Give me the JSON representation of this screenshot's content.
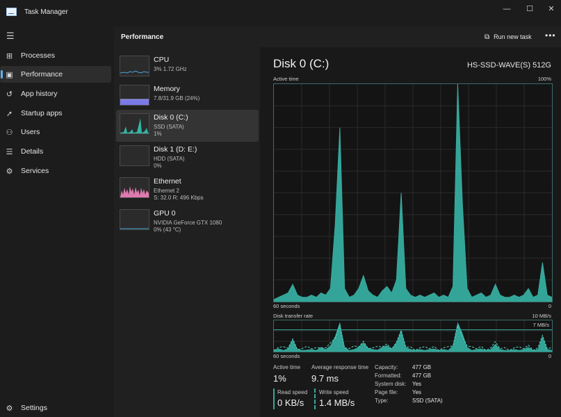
{
  "window": {
    "title": "Task Manager",
    "controls": {
      "minimize": "—",
      "maximize": "☐",
      "close": "✕"
    }
  },
  "nav": {
    "items": [
      {
        "label": "Processes",
        "icon": "processes-icon",
        "glyph": "⊞"
      },
      {
        "label": "Performance",
        "icon": "performance-icon",
        "glyph": "▣",
        "active": true
      },
      {
        "label": "App history",
        "icon": "app-history-icon",
        "glyph": "↺"
      },
      {
        "label": "Startup apps",
        "icon": "startup-icon",
        "glyph": "➚"
      },
      {
        "label": "Users",
        "icon": "users-icon",
        "glyph": "⚇"
      },
      {
        "label": "Details",
        "icon": "details-icon",
        "glyph": "☰"
      },
      {
        "label": "Services",
        "icon": "services-icon",
        "glyph": "⚙"
      }
    ],
    "settings_label": "Settings",
    "settings_glyph": "⚙"
  },
  "header": {
    "title": "Performance",
    "run_label": "Run new task",
    "run_glyph": "⧉",
    "more_glyph": "•••"
  },
  "devices": [
    {
      "name": "CPU",
      "line2": "3%  1.72 GHz",
      "line3": ""
    },
    {
      "name": "Memory",
      "line2": "7.8/31.9 GB (24%)",
      "line3": ""
    },
    {
      "name": "Disk 0 (C:)",
      "line2": "SSD (SATA)",
      "line3": "1%"
    },
    {
      "name": "Disk 1 (D: E:)",
      "line2": "HDD (SATA)",
      "line3": "0%"
    },
    {
      "name": "Ethernet",
      "line2": "Ethernet 2",
      "line3": "S: 32.0  R: 496 Kbps"
    },
    {
      "name": "GPU 0",
      "line2": "NVIDIA GeForce GTX 1080",
      "line3": "0%  (43 °C)"
    }
  ],
  "detail": {
    "title": "Disk 0 (C:)",
    "model": "HS-SSD-WAVE(S) 512G",
    "active_graph": {
      "label": "Active time",
      "max_label": "100%",
      "time_label": "60 seconds",
      "min_label": "0"
    },
    "transfer_graph": {
      "label": "Disk transfer rate",
      "max_label": "10 MB/s",
      "mid_label": "7 MB/s",
      "time_label": "60 seconds",
      "min_label": "0"
    }
  },
  "stats": {
    "active_time": {
      "label": "Active time",
      "value": "1%"
    },
    "avg_response": {
      "label": "Average response time",
      "value": "9.7 ms"
    },
    "read_speed": {
      "label": "Read speed",
      "value": "0 KB/s"
    },
    "write_speed": {
      "label": "Write speed",
      "value": "1.4 MB/s"
    },
    "properties": [
      {
        "key": "Capacity:",
        "value": "477 GB"
      },
      {
        "key": "Formatted:",
        "value": "477 GB"
      },
      {
        "key": "System disk:",
        "value": "Yes"
      },
      {
        "key": "Page file:",
        "value": "Yes"
      },
      {
        "key": "Type:",
        "value": "SSD (SATA)"
      }
    ]
  },
  "colors": {
    "accent": "#5fb2f2",
    "disk_fill": "#35b5a6",
    "disk_line": "#3aa89c",
    "memory_fill": "#7a7ae6",
    "ethernet_fill": "#e07ab0",
    "cpu_line": "#4aa6d8"
  },
  "chart_data": {
    "type": "area",
    "title": "Active time",
    "xlabel": "60 seconds",
    "ylabel": "",
    "ylim": [
      0,
      100
    ],
    "values": [
      1,
      2,
      3,
      4,
      8,
      3,
      2,
      2,
      3,
      2,
      4,
      3,
      6,
      35,
      80,
      6,
      2,
      3,
      6,
      12,
      5,
      3,
      2,
      5,
      7,
      4,
      10,
      50,
      6,
      3,
      2,
      3,
      2,
      3,
      4,
      2,
      3,
      2,
      7,
      100,
      45,
      6,
      2,
      3,
      4,
      2,
      3,
      8,
      3,
      2,
      2,
      3,
      2,
      3,
      6,
      2,
      3,
      18,
      3,
      2
    ],
    "transfer": {
      "ylim": [
        0,
        10
      ],
      "values": [
        0.5,
        1,
        0.5,
        1,
        4,
        0.8,
        0.5,
        0.6,
        0.8,
        0.5,
        1.5,
        0.8,
        2,
        5,
        9.5,
        1.5,
        0.5,
        0.8,
        1.5,
        3,
        1.2,
        0.8,
        0.6,
        1.5,
        2,
        1,
        3,
        7,
        1.5,
        0.8,
        0.5,
        0.8,
        0.5,
        0.8,
        1,
        0.5,
        0.8,
        0.5,
        2,
        9.5,
        6,
        1.5,
        0.5,
        0.8,
        1,
        0.5,
        0.8,
        2.5,
        0.8,
        0.5,
        0.5,
        0.8,
        0.5,
        0.8,
        1.5,
        0.5,
        0.8,
        5,
        0.8,
        0.5
      ]
    }
  }
}
